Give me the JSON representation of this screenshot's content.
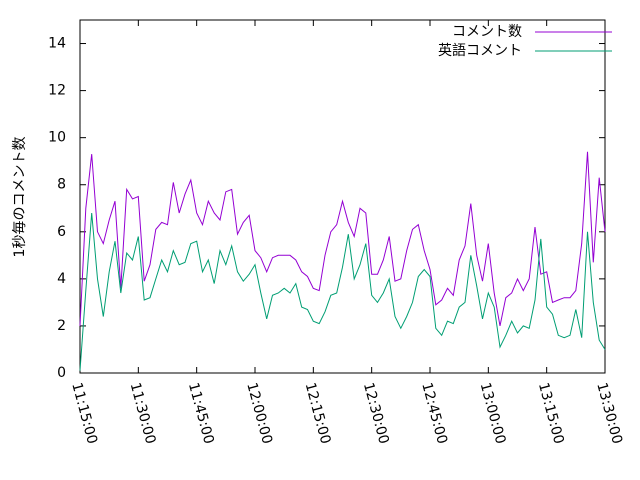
{
  "chart_data": {
    "type": "line",
    "y_label": "1秒毎のコメント数",
    "x": [
      "11:15:00",
      "11:16:30",
      "11:18:00",
      "11:19:30",
      "11:21:00",
      "11:22:30",
      "11:24:00",
      "11:25:30",
      "11:27:00",
      "11:28:30",
      "11:30:00",
      "11:31:30",
      "11:33:00",
      "11:34:30",
      "11:36:00",
      "11:37:30",
      "11:39:00",
      "11:40:30",
      "11:42:00",
      "11:43:30",
      "11:45:00",
      "11:46:30",
      "11:48:00",
      "11:49:30",
      "11:51:00",
      "11:52:30",
      "11:54:00",
      "11:55:30",
      "11:57:00",
      "11:58:30",
      "12:00:00",
      "12:01:30",
      "12:03:00",
      "12:04:30",
      "12:06:00",
      "12:07:30",
      "12:09:00",
      "12:10:30",
      "12:12:00",
      "12:13:30",
      "12:15:00",
      "12:16:30",
      "12:18:00",
      "12:19:30",
      "12:21:00",
      "12:22:30",
      "12:24:00",
      "12:25:30",
      "12:27:00",
      "12:28:30",
      "12:30:00",
      "12:31:30",
      "12:33:00",
      "12:34:30",
      "12:36:00",
      "12:37:30",
      "12:39:00",
      "12:40:30",
      "12:42:00",
      "12:43:30",
      "12:45:00",
      "12:46:30",
      "12:48:00",
      "12:49:30",
      "12:51:00",
      "12:52:30",
      "12:54:00",
      "12:55:30",
      "12:57:00",
      "12:58:30",
      "13:00:00",
      "13:01:30",
      "13:03:00",
      "13:04:30",
      "13:06:00",
      "13:07:30",
      "13:09:00",
      "13:10:30",
      "13:12:00",
      "13:13:30",
      "13:15:00",
      "13:16:30",
      "13:18:00",
      "13:19:30",
      "13:21:00",
      "13:22:30",
      "13:24:00",
      "13:25:30",
      "13:27:00",
      "13:28:30",
      "13:30:00"
    ],
    "series": [
      {
        "name": "コメント数",
        "color": "#9400d3",
        "values": [
          2.0,
          7.0,
          9.3,
          6.0,
          5.5,
          6.5,
          7.3,
          3.6,
          7.8,
          7.4,
          7.5,
          3.9,
          4.6,
          6.1,
          6.4,
          6.3,
          8.1,
          6.8,
          7.6,
          8.2,
          6.8,
          6.3,
          7.3,
          6.8,
          6.5,
          7.7,
          7.8,
          5.9,
          6.4,
          6.7,
          5.2,
          4.9,
          4.3,
          4.9,
          5.0,
          5.0,
          5.0,
          4.8,
          4.3,
          4.1,
          3.6,
          3.5,
          5.0,
          6.0,
          6.3,
          7.3,
          6.4,
          5.8,
          7.0,
          6.8,
          4.2,
          4.2,
          4.8,
          5.8,
          3.9,
          4.0,
          5.2,
          6.1,
          6.3,
          5.2,
          4.4,
          2.9,
          3.1,
          3.6,
          3.3,
          4.8,
          5.4,
          7.2,
          5.0,
          3.9,
          5.5,
          3.4,
          2.0,
          3.2,
          3.4,
          4.0,
          3.5,
          4.0,
          6.2,
          4.2,
          4.3,
          3.0,
          3.1,
          3.2,
          3.2,
          3.5,
          5.5,
          9.4,
          4.7,
          8.3,
          6.0
        ]
      },
      {
        "name": "英語コメント",
        "color": "#009e73",
        "values": [
          0.1,
          3.5,
          6.8,
          4.0,
          2.4,
          4.3,
          5.6,
          3.4,
          5.1,
          4.8,
          5.8,
          3.1,
          3.2,
          4.0,
          4.8,
          4.3,
          5.2,
          4.6,
          4.7,
          5.5,
          5.6,
          4.3,
          4.8,
          3.8,
          5.2,
          4.6,
          5.4,
          4.3,
          3.9,
          4.2,
          4.6,
          3.4,
          2.3,
          3.3,
          3.4,
          3.6,
          3.4,
          3.8,
          2.8,
          2.7,
          2.2,
          2.1,
          2.6,
          3.3,
          3.4,
          4.5,
          5.9,
          4.0,
          4.6,
          5.5,
          3.3,
          3.0,
          3.4,
          4.0,
          2.4,
          1.9,
          2.4,
          3.0,
          4.1,
          4.4,
          4.1,
          1.9,
          1.6,
          2.2,
          2.1,
          2.8,
          3.0,
          5.0,
          3.7,
          2.3,
          3.4,
          2.8,
          1.1,
          1.6,
          2.2,
          1.7,
          2.0,
          1.9,
          3.1,
          5.7,
          2.8,
          2.5,
          1.6,
          1.5,
          1.6,
          2.7,
          1.5,
          6.0,
          3.0,
          1.4,
          1.0
        ]
      }
    ],
    "xlim": [
      "11:15:00",
      "13:30:00"
    ],
    "xticks": [
      "11:15:00",
      "11:30:00",
      "11:45:00",
      "12:00:00",
      "12:15:00",
      "12:30:00",
      "12:45:00",
      "13:00:00",
      "13:15:00",
      "13:30:00"
    ],
    "ylim": [
      0,
      15
    ],
    "yticks": [
      0,
      2,
      4,
      6,
      8,
      10,
      12,
      14
    ],
    "legend": "top-right"
  }
}
